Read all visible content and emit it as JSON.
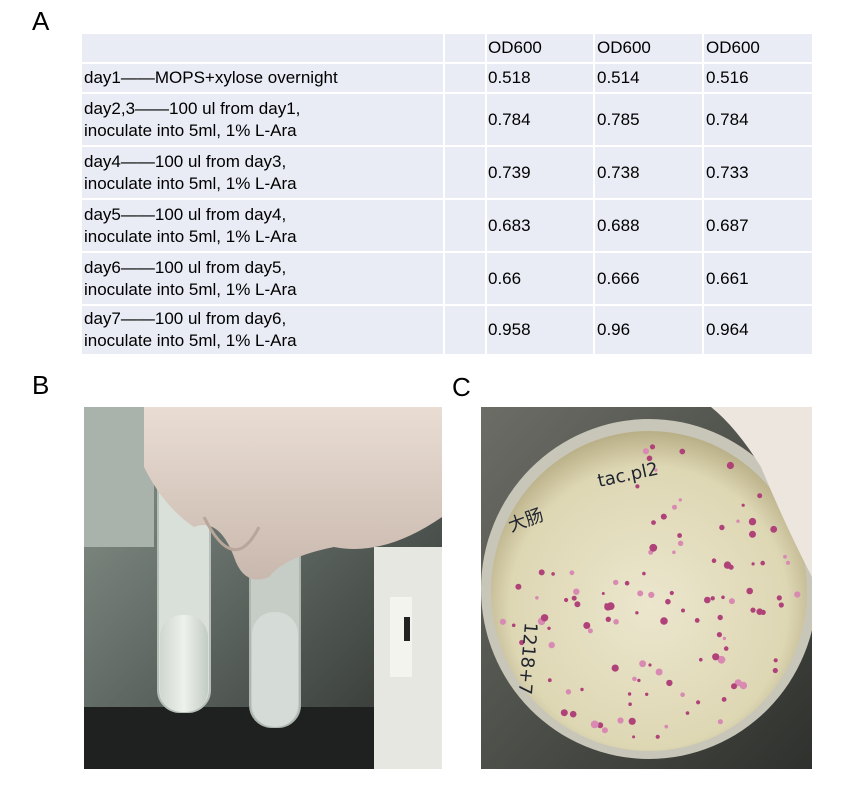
{
  "panels": {
    "a": "A",
    "b": "B",
    "c": "C"
  },
  "table": {
    "header": [
      "",
      "OD600",
      "OD600",
      "OD600"
    ],
    "rows": [
      {
        "label_lines": [
          "day1——MOPS+xylose overnight"
        ],
        "values": [
          "0.518",
          "0.514",
          "0.516"
        ]
      },
      {
        "label_lines": [
          "day2,3——100 ul from day1,",
          "inoculate into 5ml, 1% L-Ara"
        ],
        "values": [
          "0.784",
          "0.785",
          "0.784"
        ]
      },
      {
        "label_lines": [
          "day4——100 ul from day3,",
          "inoculate into 5ml, 1% L-Ara"
        ],
        "values": [
          "0.739",
          "0.738",
          "0.733"
        ]
      },
      {
        "label_lines": [
          "day5——100 ul from day4,",
          "inoculate into 5ml, 1% L-Ara"
        ],
        "values": [
          "0.683",
          "0.688",
          "0.687"
        ]
      },
      {
        "label_lines": [
          "day6——100 ul from day5,",
          "inoculate into 5ml, 1% L-Ara"
        ],
        "values": [
          "0.66",
          "0.666",
          "0.661"
        ]
      },
      {
        "label_lines": [
          "day7——100 ul from day6,",
          "inoculate into 5ml, 1% L-Ara"
        ],
        "values": [
          "0.958",
          "0.96",
          "0.964"
        ]
      }
    ]
  },
  "photos": {
    "plate_handwriting": [
      "tac.pl2",
      "大肠",
      "1218+7"
    ]
  }
}
